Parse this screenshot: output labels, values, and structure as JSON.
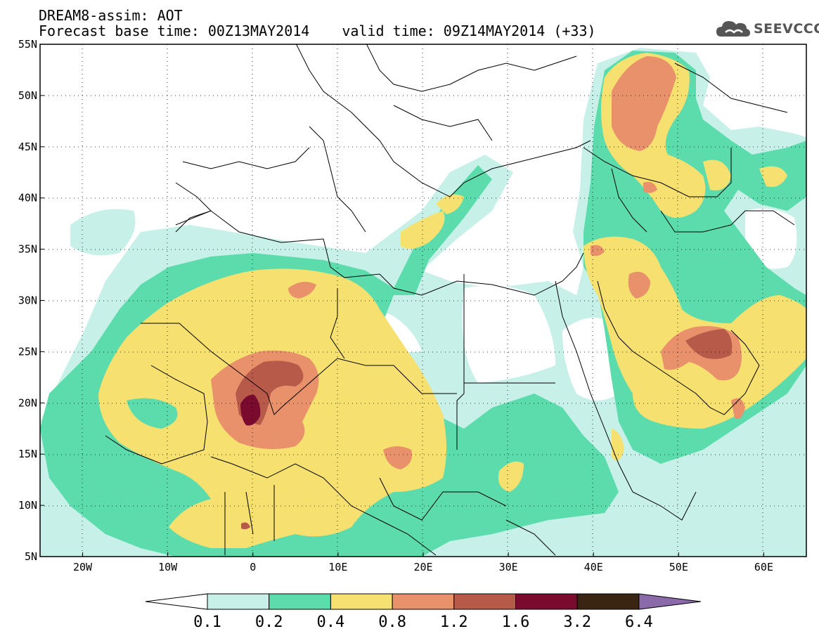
{
  "header": {
    "title_line1": "DREAM8-assim: AOT",
    "base_time": "Forecast base time: 00Z13MAY2014",
    "valid_time": "valid time: 09Z14MAY2014 (+33)"
  },
  "logo": {
    "text": "SEEVCCC",
    "icon": "cloud-icon"
  },
  "map": {
    "lon_range": [
      -25,
      65
    ],
    "lat_range": [
      5,
      55
    ],
    "lat_ticks": [
      {
        "lat": 55,
        "label": "55N"
      },
      {
        "lat": 50,
        "label": "50N"
      },
      {
        "lat": 45,
        "label": "45N"
      },
      {
        "lat": 40,
        "label": "40N"
      },
      {
        "lat": 35,
        "label": "35N"
      },
      {
        "lat": 30,
        "label": "30N"
      },
      {
        "lat": 25,
        "label": "25N"
      },
      {
        "lat": 20,
        "label": "20N"
      },
      {
        "lat": 15,
        "label": "15N"
      },
      {
        "lat": 10,
        "label": "10N"
      },
      {
        "lat": 5,
        "label": "5N"
      }
    ],
    "lon_ticks": [
      {
        "lon": -20,
        "label": "20W"
      },
      {
        "lon": -10,
        "label": "10W"
      },
      {
        "lon": 0,
        "label": "0"
      },
      {
        "lon": 10,
        "label": "10E"
      },
      {
        "lon": 20,
        "label": "20E"
      },
      {
        "lon": 30,
        "label": "30E"
      },
      {
        "lon": 40,
        "label": "40E"
      },
      {
        "lon": 50,
        "label": "50E"
      },
      {
        "lon": 60,
        "label": "60E"
      }
    ],
    "gridlines": "dotted"
  },
  "colorbar": {
    "bounds": [
      "0.1",
      "0.2",
      "0.4",
      "0.8",
      "1.2",
      "1.6",
      "3.2",
      "6.4"
    ],
    "low_color": "#ffffff",
    "colors": [
      "#c6f0e8",
      "#5cdcad",
      "#f5e070",
      "#e8916a",
      "#b85a4a",
      "#7a0a2e",
      "#3a2412"
    ],
    "high_color": "#8a6aaa"
  }
}
